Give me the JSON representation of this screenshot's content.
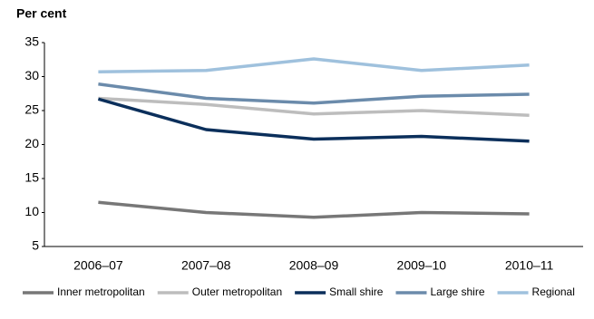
{
  "chart_data": {
    "type": "line",
    "title": "Per cent",
    "categories": [
      "2006–07",
      "2007–08",
      "2008–09",
      "2009–10",
      "2010–11"
    ],
    "series": [
      {
        "name": "Inner metropolitan",
        "color": "#777777",
        "values": [
          11.5,
          10.0,
          9.3,
          10.0,
          9.8
        ]
      },
      {
        "name": "Outer metropolitan",
        "color": "#bdbdbd",
        "values": [
          26.8,
          25.9,
          24.5,
          25.0,
          24.3
        ]
      },
      {
        "name": "Small shire",
        "color": "#0b2f5b",
        "values": [
          26.7,
          22.2,
          20.8,
          21.2,
          20.5
        ]
      },
      {
        "name": "Large shire",
        "color": "#6b8bab",
        "values": [
          28.9,
          26.8,
          26.1,
          27.1,
          27.4
        ]
      },
      {
        "name": "Regional",
        "color": "#9fc1dd",
        "values": [
          30.7,
          30.9,
          32.6,
          30.9,
          31.7
        ]
      }
    ],
    "ylim": [
      5,
      35
    ],
    "yticks": [
      5,
      10,
      15,
      20,
      25,
      30,
      35
    ],
    "grid": false,
    "legend": "bottom"
  }
}
